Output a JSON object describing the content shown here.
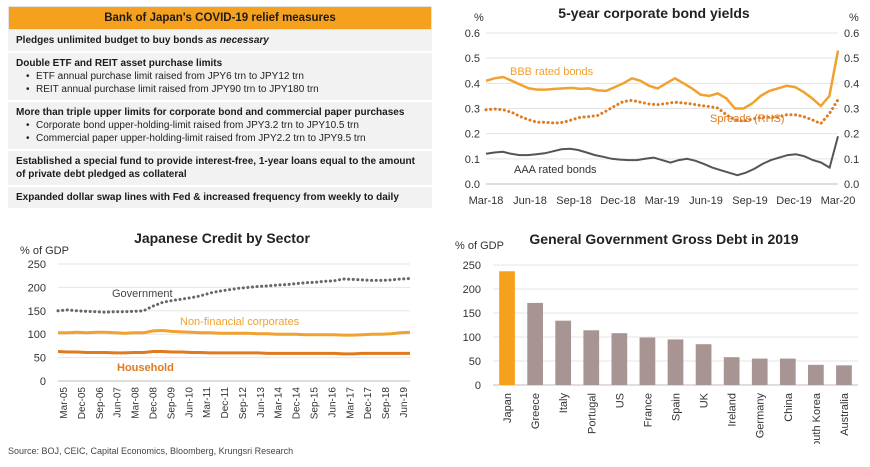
{
  "table": {
    "title": "Bank of Japan's COVID-19 relief measures",
    "rows": [
      {
        "head": "Pledges unlimited budget to buy bonds ",
        "head_italic": "as necessary",
        "bullets": []
      },
      {
        "head": "Double ETF and REIT asset purchase limits",
        "head_italic": "",
        "bullets": [
          "ETF annual purchase limit raised from JPY6 trn to JPY12 trn",
          "REIT annual purchase limit raised from JPY90 trn to JPY180 trn"
        ]
      },
      {
        "head": "More than triple upper limits for corporate bond and commercial paper purchases",
        "head_italic": "",
        "bullets": [
          "Corporate bond upper-holding-limit raised from JPY3.2 trn to JPY10.5 trn",
          "Commercial paper upper-holding-limit raised from JPY2.2 trn to JPY9.5 trn"
        ]
      },
      {
        "head": "Established a special fund to provide interest-free, 1-year loans equal to the amount of private debt pledged as collateral",
        "head_italic": "",
        "bullets": []
      },
      {
        "head": "Expanded dollar swap lines with Fed & increased frequency from weekly to daily",
        "head_italic": "",
        "bullets": []
      }
    ]
  },
  "source": "Source: BOJ, CEIC, Capital Economics, Bloomberg, Krungsri Research",
  "chart_data": [
    {
      "type": "line",
      "title": "5-year corporate bond yields",
      "ylabel_left": "%",
      "ylabel_right": "%",
      "x_ticks": [
        "Mar-18",
        "Jun-18",
        "Sep-18",
        "Dec-18",
        "Mar-19",
        "Jun-19",
        "Sep-19",
        "Dec-19",
        "Mar-20"
      ],
      "ylim_left": [
        0,
        0.6
      ],
      "ylim_right": [
        0,
        0.6
      ],
      "y_ticks": [
        "0.0",
        "0.1",
        "0.2",
        "0.3",
        "0.4",
        "0.5",
        "0.6"
      ],
      "series": [
        {
          "name": "BBB rated bonds",
          "axis": "left",
          "color": "#f0a12f",
          "style": "solid",
          "values": [
            0.41,
            0.42,
            0.425,
            0.41,
            0.395,
            0.38,
            0.375,
            0.375,
            0.378,
            0.38,
            0.382,
            0.378,
            0.38,
            0.372,
            0.37,
            0.385,
            0.4,
            0.42,
            0.41,
            0.39,
            0.38,
            0.4,
            0.42,
            0.4,
            0.38,
            0.355,
            0.35,
            0.36,
            0.34,
            0.3,
            0.3,
            0.32,
            0.35,
            0.37,
            0.38,
            0.39,
            0.385,
            0.365,
            0.34,
            0.31,
            0.35,
            0.53
          ]
        },
        {
          "name": "Spreads (RHS)",
          "axis": "right",
          "color": "#e07a1f",
          "style": "dotted",
          "values": [
            0.295,
            0.298,
            0.295,
            0.285,
            0.268,
            0.255,
            0.245,
            0.245,
            0.242,
            0.245,
            0.255,
            0.265,
            0.268,
            0.272,
            0.29,
            0.31,
            0.328,
            0.332,
            0.325,
            0.318,
            0.315,
            0.32,
            0.325,
            0.322,
            0.318,
            0.312,
            0.308,
            0.302,
            0.275,
            0.255,
            0.25,
            0.258,
            0.265,
            0.265,
            0.265,
            0.275,
            0.275,
            0.268,
            0.255,
            0.24,
            0.28,
            0.335
          ]
        },
        {
          "name": "AAA rated bonds",
          "axis": "left",
          "color": "#555555",
          "style": "solid",
          "values": [
            0.12,
            0.125,
            0.128,
            0.12,
            0.115,
            0.115,
            0.118,
            0.122,
            0.13,
            0.138,
            0.14,
            0.135,
            0.125,
            0.115,
            0.108,
            0.1,
            0.097,
            0.095,
            0.095,
            0.1,
            0.105,
            0.095,
            0.085,
            0.095,
            0.1,
            0.092,
            0.08,
            0.065,
            0.055,
            0.045,
            0.035,
            0.045,
            0.06,
            0.08,
            0.095,
            0.105,
            0.115,
            0.118,
            0.11,
            0.095,
            0.085,
            0.065,
            0.19
          ]
        }
      ]
    },
    {
      "type": "line",
      "title": "Japanese Credit by Sector",
      "ylabel": "% of GDP",
      "ylim": [
        0,
        250
      ],
      "y_ticks": [
        "0",
        "50",
        "100",
        "150",
        "200",
        "250"
      ],
      "x_ticks": [
        "Mar-05",
        "Dec-05",
        "Sep-06",
        "Jun-07",
        "Mar-08",
        "Dec-08",
        "Sep-09",
        "Jun-10",
        "Mar-11",
        "Dec-11",
        "Sep-12",
        "Jun-13",
        "Mar-14",
        "Dec-14",
        "Sep-15",
        "Jun-16",
        "Mar-17",
        "Dec-17",
        "Sep-18",
        "Jun-19"
      ],
      "series": [
        {
          "name": "Government",
          "color": "#666666",
          "style": "dotted",
          "values": [
            150,
            152,
            150,
            149,
            148,
            147,
            148,
            148,
            149,
            150,
            160,
            168,
            172,
            175,
            178,
            182,
            188,
            192,
            195,
            198,
            200,
            202,
            203,
            205,
            206,
            208,
            210,
            211,
            213,
            214,
            218,
            217,
            216,
            215,
            215,
            216,
            218,
            219
          ]
        },
        {
          "name": "Non-financial corporates",
          "color": "#f0a12f",
          "style": "solid",
          "values": [
            103,
            103,
            104,
            103,
            104,
            104,
            103,
            102,
            103,
            103,
            107,
            108,
            106,
            105,
            104,
            103,
            103,
            102,
            102,
            102,
            102,
            101,
            101,
            100,
            100,
            100,
            99,
            99,
            99,
            99,
            98,
            98,
            99,
            100,
            100,
            101,
            103,
            104
          ]
        },
        {
          "name": "Household",
          "color": "#e07a1f",
          "style": "solid",
          "values": [
            63,
            62,
            62,
            61,
            61,
            61,
            60,
            60,
            61,
            61,
            63,
            63,
            62,
            62,
            61,
            61,
            60,
            60,
            60,
            60,
            60,
            60,
            59,
            59,
            59,
            59,
            59,
            59,
            59,
            59,
            58,
            58,
            59,
            59,
            59,
            59,
            59,
            59
          ]
        }
      ]
    },
    {
      "type": "bar",
      "title": "General Government Gross Debt in 2019",
      "ylabel": "% of GDP",
      "ylim": [
        0,
        250
      ],
      "y_ticks": [
        "0",
        "50",
        "100",
        "150",
        "200",
        "250"
      ],
      "categories": [
        "Japan",
        "Greece",
        "Italy",
        "Portugal",
        "US",
        "France",
        "Spain",
        "UK",
        "Ireland",
        "Germany",
        "China",
        "South Korea",
        "Australia"
      ],
      "values": [
        237,
        171,
        134,
        114,
        108,
        99,
        95,
        85,
        58,
        55,
        55,
        42,
        41
      ],
      "colors": [
        "#f5a11d",
        "#a89593",
        "#a89593",
        "#a89593",
        "#a89593",
        "#a89593",
        "#a89593",
        "#a89593",
        "#a89593",
        "#a89593",
        "#a89593",
        "#a89593",
        "#a89593"
      ]
    }
  ]
}
